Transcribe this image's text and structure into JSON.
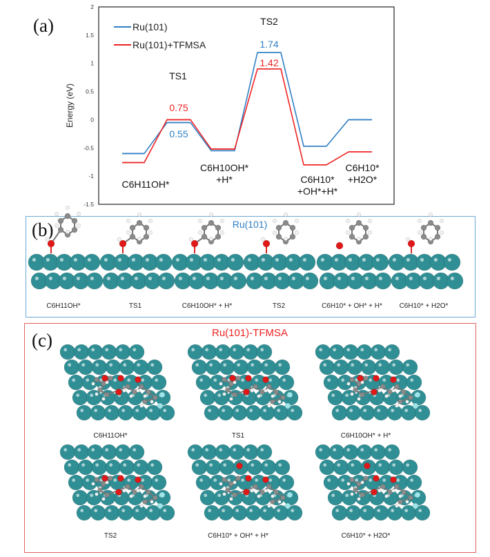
{
  "chart_data": {
    "type": "line",
    "subtype": "energy-profile",
    "panel_label": "(a)",
    "ylabel": "Energy (eV)",
    "ylim": [
      -1.5,
      2
    ],
    "yticks": [
      "2",
      "1.5",
      "1",
      "0.5",
      "0",
      "-0.5",
      "-1",
      "-1.5"
    ],
    "ytick_values": [
      2,
      1.5,
      1,
      0.5,
      0,
      -0.5,
      -1,
      -1.5
    ],
    "legend_position": "top-left",
    "states": [
      "C6H11OH*",
      "TS1",
      "C6H10OH*+H*",
      "TS2",
      "C6H10*+OH*+H*",
      "C6H10*+H2O*"
    ],
    "state_labels": [
      {
        "lines": [
          "C6H11OH*"
        ]
      },
      {
        "lines": [
          "TS1"
        ]
      },
      {
        "lines": [
          "C6H10OH*",
          "+H*"
        ]
      },
      {
        "lines": [
          "TS2"
        ]
      },
      {
        "lines": [
          "C6H10*",
          "+OH*+H*"
        ]
      },
      {
        "lines": [
          "C6H10*",
          "+H2O*"
        ]
      }
    ],
    "series": [
      {
        "name": "Ru(101)",
        "color": "#2f7fc4",
        "values": [
          -0.6,
          -0.05,
          -0.55,
          1.19,
          -0.47,
          0.0
        ]
      },
      {
        "name": "Ru(101)+TFMSA",
        "color": "#ee2222",
        "values": [
          -0.76,
          0.0,
          -0.52,
          0.9,
          -0.8,
          -0.57
        ]
      }
    ],
    "annotations": [
      {
        "text": "0.75",
        "color": "#ee2222",
        "state": "TS1"
      },
      {
        "text": "0.55",
        "color": "#2f7fc4",
        "state": "TS1"
      },
      {
        "text": "1.74",
        "color": "#2f7fc4",
        "state": "TS2"
      },
      {
        "text": "1.42",
        "color": "#ee2222",
        "state": "TS2"
      }
    ]
  },
  "panel_b": {
    "label": "(b)",
    "title": "Ru(101)",
    "title_color": "#2f7fc4",
    "structures": [
      "C6H11OH*",
      "TS1",
      "C6H10OH* + H*",
      "TS2",
      "C6H10* + OH* + H*",
      "C6H10* + H2O*"
    ]
  },
  "panel_c": {
    "label": "(c)",
    "title": "Ru(101)-TFMSA",
    "title_color": "#ee2222",
    "structures": [
      "C6H11OH*",
      "TS1",
      "C6H10OH* + H*",
      "TS2",
      "C6H10* + OH* + H*",
      "C6H10* + H2O*"
    ]
  },
  "colors": {
    "ru": "#2f8f95",
    "carbon": "#8a8a8a",
    "oxygen": "#e01818",
    "hydrogen": "#f2f2f2",
    "fluorine": "#9fe6ea"
  }
}
